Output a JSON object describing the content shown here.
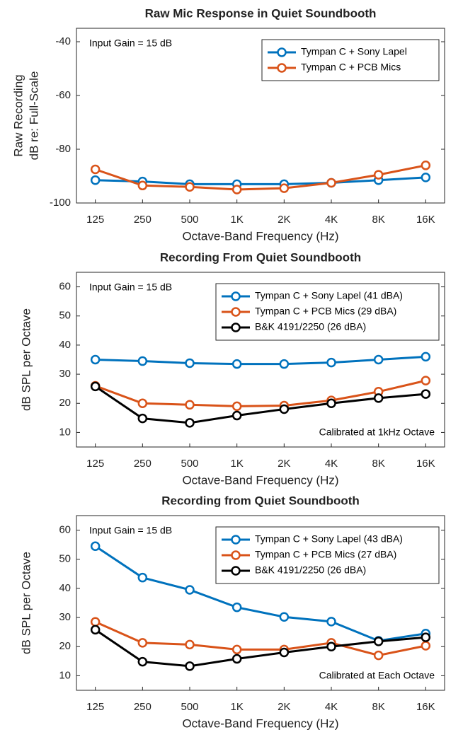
{
  "chart_data": [
    {
      "type": "line",
      "title": "Raw Mic Response in Quiet Soundbooth",
      "xlabel": "Octave-Band Frequency (Hz)",
      "ylabel": [
        "Raw Recording",
        "dB re: Full-Scale"
      ],
      "annotations": [
        "Input Gain = 15 dB"
      ],
      "legend": "upper right",
      "categories": [
        "125",
        "250",
        "500",
        "1K",
        "2K",
        "4K",
        "8K",
        "16K"
      ],
      "series": [
        {
          "name": "Tympan C + Sony Lapel",
          "color": "#0072bd",
          "values": [
            -91.5,
            -92,
            -93,
            -93,
            -93,
            -92.5,
            -91.5,
            -90.5
          ]
        },
        {
          "name": "Tympan C + PCB Mics",
          "color": "#d95319",
          "values": [
            -87.5,
            -93.5,
            -94,
            -95,
            -94.5,
            -92.5,
            -89.5,
            -86
          ]
        }
      ],
      "ylim": [
        -100,
        -35
      ],
      "yticks": [
        -100,
        -80,
        -60,
        -40
      ]
    },
    {
      "type": "line",
      "title": "Recording From Quiet Soundbooth",
      "xlabel": "Octave-Band Frequency (Hz)",
      "ylabel": [
        "dB SPL per Octave"
      ],
      "annotations": [
        "Input Gain = 15 dB",
        "Calibrated at 1kHz Octave"
      ],
      "legend": "upper right",
      "categories": [
        "125",
        "250",
        "500",
        "1K",
        "2K",
        "4K",
        "8K",
        "16K"
      ],
      "series": [
        {
          "name": "Tympan C + Sony Lapel (41 dBA)",
          "color": "#0072bd",
          "values": [
            35,
            34.5,
            33.8,
            33.5,
            33.5,
            34,
            35,
            36
          ]
        },
        {
          "name": "Tympan C + PCB Mics (29 dBA)",
          "color": "#d95319",
          "values": [
            26,
            20,
            19.5,
            19,
            19.2,
            21,
            24,
            27.8
          ]
        },
        {
          "name": "B&K 4191/2250 (26 dBA)",
          "color": "#000000",
          "values": [
            25.8,
            14.8,
            13.3,
            15.8,
            18,
            20,
            21.8,
            23.2
          ]
        }
      ],
      "ylim": [
        5,
        65
      ],
      "yticks": [
        10,
        20,
        30,
        40,
        50,
        60
      ]
    },
    {
      "type": "line",
      "title": "Recording from Quiet Soundbooth",
      "xlabel": "Octave-Band Frequency (Hz)",
      "ylabel": [
        "dB SPL per Octave"
      ],
      "annotations": [
        "Input Gain = 15 dB",
        "Calibrated at Each Octave"
      ],
      "legend": "upper right",
      "categories": [
        "125",
        "250",
        "500",
        "1K",
        "2K",
        "4K",
        "8K",
        "16K"
      ],
      "series": [
        {
          "name": "Tympan C + Sony Lapel (43 dBA)",
          "color": "#0072bd",
          "values": [
            54.5,
            43.7,
            39.5,
            33.5,
            30.2,
            28.6,
            22,
            24.5
          ]
        },
        {
          "name": "Tympan C + PCB Mics (27 dBA)",
          "color": "#d95319",
          "values": [
            28.5,
            21.3,
            20.7,
            19,
            19,
            21.3,
            17,
            20.3
          ]
        },
        {
          "name": "B&K 4191/2250 (26 dBA)",
          "color": "#000000",
          "values": [
            25.8,
            14.8,
            13.3,
            15.8,
            18,
            20,
            21.8,
            23.2
          ]
        }
      ],
      "ylim": [
        5,
        65
      ],
      "yticks": [
        10,
        20,
        30,
        40,
        50,
        60
      ]
    }
  ]
}
